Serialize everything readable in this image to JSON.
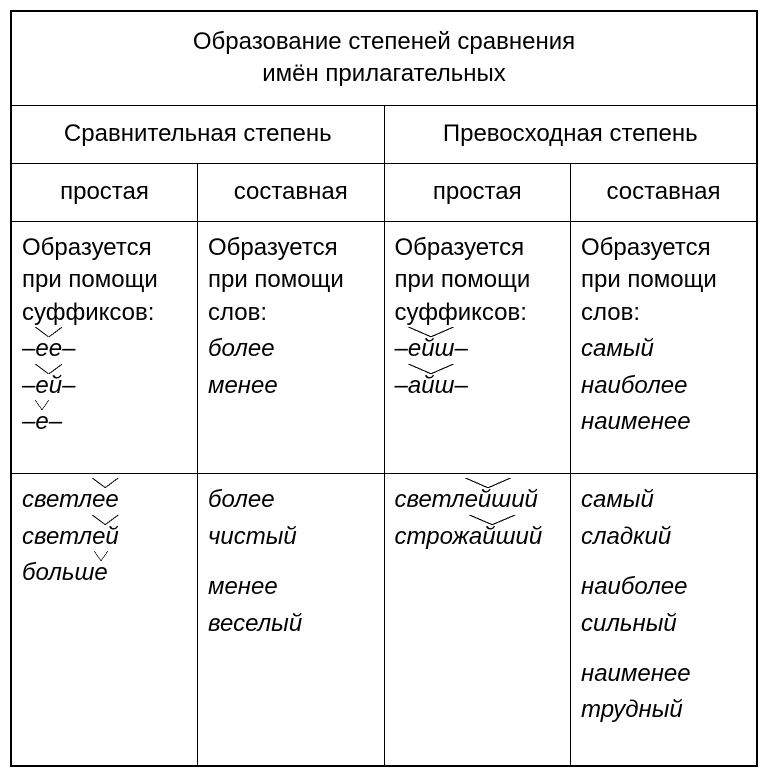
{
  "title_line1": "Образование степеней сравнения",
  "title_line2": "имён прилагательных",
  "header_groups": {
    "comparative": "Сравнительная степень",
    "superlative": "Превосходная степень"
  },
  "subheaders": {
    "simple": "простая",
    "compound": "составная"
  },
  "rules": {
    "comparative_simple": {
      "intro": "Образуется при помощи суффиксов:",
      "suffixes": [
        {
          "pre": "–",
          "hat": "ее",
          "post": "–"
        },
        {
          "pre": "–",
          "hat": "ей",
          "post": "–"
        },
        {
          "pre": "–",
          "hat": "е",
          "post": "–"
        }
      ]
    },
    "comparative_compound": {
      "intro": "Образуется при помощи слов:",
      "words": [
        "более",
        "менее"
      ]
    },
    "superlative_simple": {
      "intro": "Образуется при помощи суффиксов:",
      "suffixes": [
        {
          "pre": "–",
          "hat": "ейш",
          "post": "–"
        },
        {
          "pre": "–",
          "hat": "айш",
          "post": "–"
        }
      ]
    },
    "superlative_compound": {
      "intro": "Образуется при помощи слов:",
      "words": [
        "самый",
        "наиболее",
        "наименее"
      ]
    }
  },
  "examples": {
    "comparative_simple": [
      {
        "pre": "светл",
        "hat": "ее",
        "post": ""
      },
      {
        "pre": "светл",
        "hat": "ей",
        "post": ""
      },
      {
        "pre": "больш",
        "hat": "е",
        "post": ""
      }
    ],
    "comparative_compound": [
      [
        "более",
        "чистый"
      ],
      [
        "менее",
        "веселый"
      ]
    ],
    "superlative_simple": [
      {
        "pre": "светл",
        "hat": "ейш",
        "post": "ий"
      },
      {
        "pre": "строж",
        "hat": "айш",
        "post": "ий"
      }
    ],
    "superlative_compound": [
      [
        "самый",
        "сладкий"
      ],
      [
        "наиболее",
        "сильный"
      ],
      [
        "наименее",
        "трудный"
      ]
    ]
  },
  "colors": {
    "text": "#000000",
    "border": "#000000",
    "background": "#ffffff"
  },
  "typography": {
    "base_fontsize_pt": 18,
    "title_fontsize_pt": 20,
    "font_family": "Arial"
  }
}
